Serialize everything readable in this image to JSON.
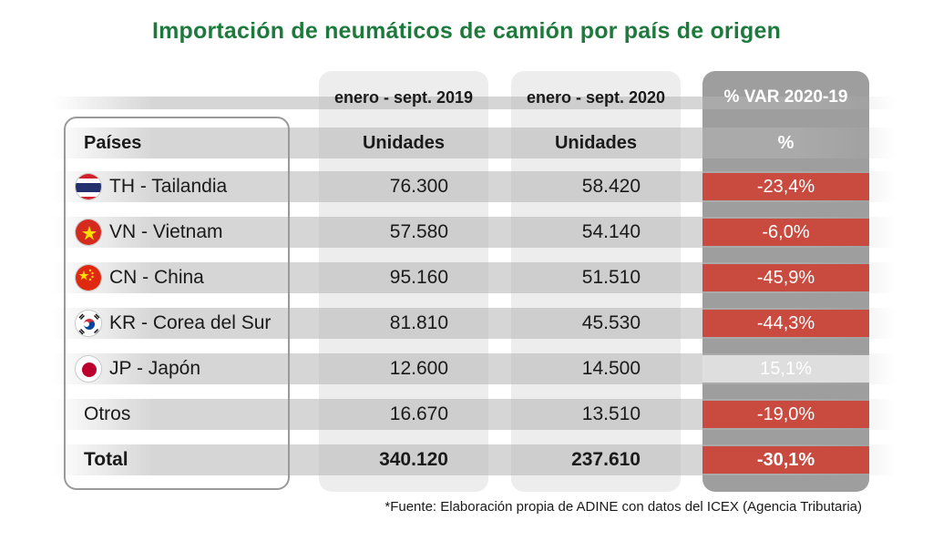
{
  "title": "Importación de neumáticos de camión por país de origen",
  "source": "*Fuente: Elaboración propia de ADINE con datos del ICEX (Agencia Tributaria)",
  "chart_data": {
    "type": "table",
    "periods": [
      "enero - sept. 2019",
      "enero - sept. 2020",
      "% VAR 2020-19"
    ],
    "columns": [
      "Países",
      "Unidades",
      "Unidades",
      "%"
    ],
    "rows": [
      {
        "country": "TH - Tailandia",
        "flag": "thailand-flag-icon",
        "y2019": "76.300",
        "y2020": "58.420",
        "var": "-23,4%",
        "sign": "neg"
      },
      {
        "country": "VN - Vietnam",
        "flag": "vietnam-flag-icon",
        "y2019": "57.580",
        "y2020": "54.140",
        "var": "-6,0%",
        "sign": "neg"
      },
      {
        "country": "CN - China",
        "flag": "china-flag-icon",
        "y2019": "95.160",
        "y2020": "51.510",
        "var": "-45,9%",
        "sign": "neg"
      },
      {
        "country": "KR - Corea del Sur",
        "flag": "korea-flag-icon",
        "y2019": "81.810",
        "y2020": "45.530",
        "var": "-44,3%",
        "sign": "neg"
      },
      {
        "country": "JP - Japón",
        "flag": "japan-flag-icon",
        "y2019": "12.600",
        "y2020": "14.500",
        "var": "15,1%",
        "sign": "pos"
      },
      {
        "country": "Otros",
        "flag": "",
        "y2019": "16.670",
        "y2020": "13.510",
        "var": "-19,0%",
        "sign": "neg"
      }
    ],
    "total": {
      "country": "Total",
      "y2019": "340.120",
      "y2020": "237.610",
      "var": "-30,1%",
      "sign": "neg"
    },
    "colors": {
      "title": "#1e7a3c",
      "negative": "#c94a3e",
      "positive": "#dedede",
      "var_column": "#9e9e9e"
    }
  }
}
